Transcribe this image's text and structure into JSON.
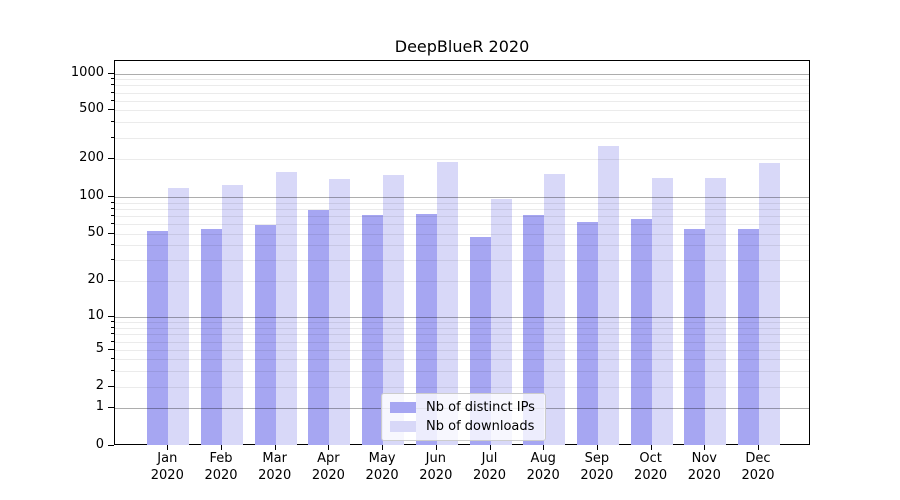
{
  "chart_data": {
    "type": "bar",
    "title": "DeepBlueR 2020",
    "y_scale": "symlog",
    "ylim": [
      0,
      1300
    ],
    "grid": true,
    "legend_position": "inside-bottom-center",
    "categories": [
      "Jan",
      "Feb",
      "Mar",
      "Apr",
      "May",
      "Jun",
      "Jul",
      "Aug",
      "Sep",
      "Oct",
      "Nov",
      "Dec"
    ],
    "category_year": "2020",
    "y_tick_labels": [
      "0",
      "1",
      "2",
      "5",
      "10",
      "20",
      "50",
      "100",
      "200",
      "500",
      "1000"
    ],
    "series": [
      {
        "name": "Nb of distinct IPs",
        "color": "#a6a6f2",
        "values": [
          53,
          55,
          59,
          78,
          71,
          72,
          47,
          71,
          62,
          66,
          55,
          55
        ]
      },
      {
        "name": "Nb of downloads",
        "color": "#d8d8f8",
        "values": [
          118,
          124,
          158,
          139,
          149,
          191,
          97,
          152,
          258,
          142,
          141,
          186
        ]
      }
    ]
  }
}
